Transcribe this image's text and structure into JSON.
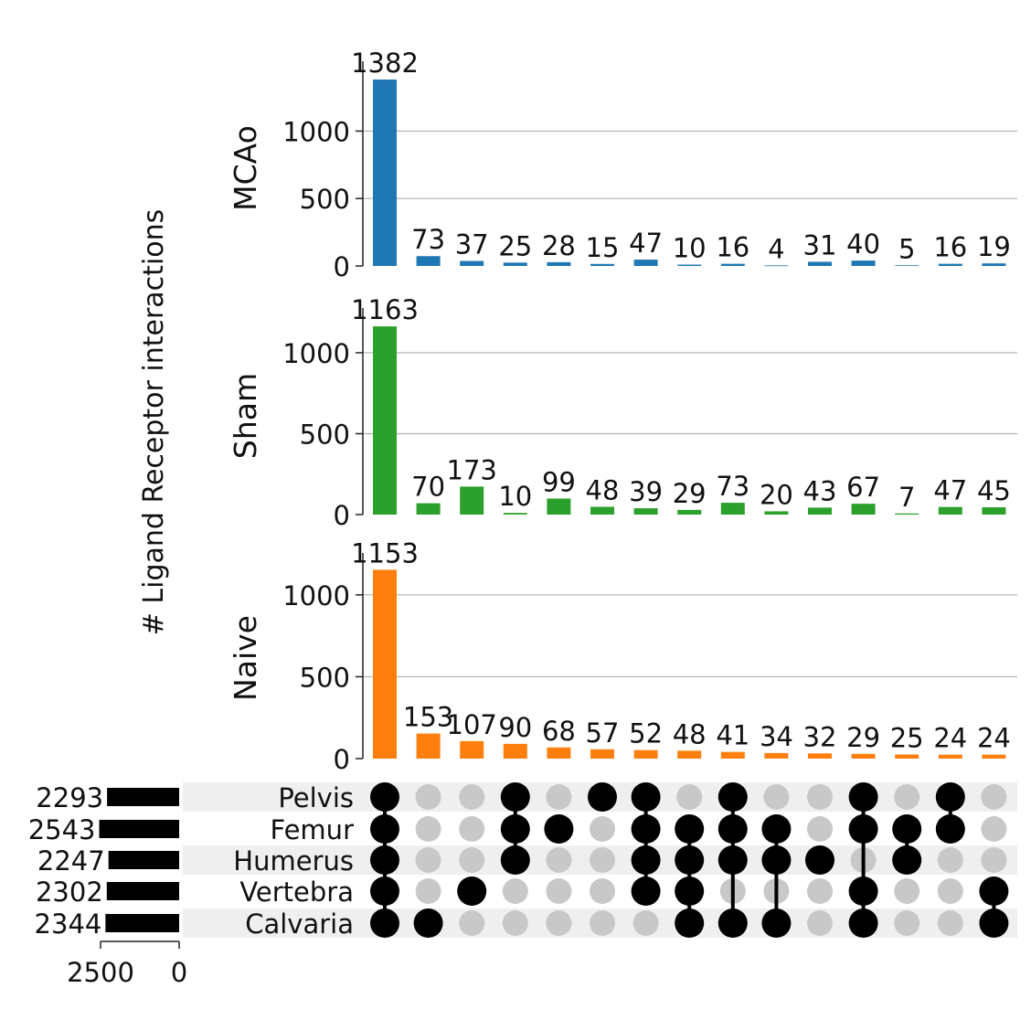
{
  "chart_data": {
    "type": "upset",
    "ylabel": "# Ligand Receptor interactions",
    "sets": [
      "Pelvis",
      "Femur",
      "Humerus",
      "Vertebra",
      "Calvaria"
    ],
    "set_sizes": [
      2293,
      2543,
      2247,
      2302,
      2344
    ],
    "set_size_axis": {
      "ticks": [
        2500,
        0
      ],
      "tick_labels": [
        "2500",
        "0"
      ]
    },
    "intersections": [
      [
        "Pelvis",
        "Femur",
        "Humerus",
        "Vertebra",
        "Calvaria"
      ],
      [
        "Calvaria"
      ],
      [
        "Vertebra"
      ],
      [
        "Pelvis",
        "Femur",
        "Humerus"
      ],
      [
        "Femur"
      ],
      [
        "Pelvis"
      ],
      [
        "Pelvis",
        "Femur",
        "Humerus",
        "Vertebra"
      ],
      [
        "Femur",
        "Humerus",
        "Vertebra",
        "Calvaria"
      ],
      [
        "Pelvis",
        "Femur",
        "Humerus",
        "Calvaria"
      ],
      [
        "Femur",
        "Humerus",
        "Calvaria"
      ],
      [
        "Humerus"
      ],
      [
        "Pelvis",
        "Femur",
        "Vertebra",
        "Calvaria"
      ],
      [
        "Femur",
        "Humerus"
      ],
      [
        "Pelvis",
        "Femur"
      ],
      [
        "Vertebra",
        "Calvaria"
      ]
    ],
    "panels": [
      {
        "name": "MCAo",
        "color": "#1f77b4",
        "ylim": [
          0,
          1450
        ],
        "yticks": [
          0,
          500,
          1000
        ],
        "grid": true,
        "values": [
          1382,
          73,
          37,
          25,
          28,
          15,
          47,
          10,
          16,
          4,
          31,
          40,
          5,
          16,
          19
        ]
      },
      {
        "name": "Sham",
        "color": "#2ca02c",
        "ylim": [
          0,
          1220
        ],
        "yticks": [
          0,
          500,
          1000
        ],
        "grid": true,
        "values": [
          1163,
          70,
          173,
          10,
          99,
          48,
          39,
          29,
          73,
          20,
          43,
          67,
          7,
          47,
          45
        ]
      },
      {
        "name": "Naive",
        "color": "#ff7f0e",
        "ylim": [
          0,
          1200
        ],
        "yticks": [
          0,
          500,
          1000
        ],
        "grid": true,
        "values": [
          1153,
          153,
          107,
          90,
          68,
          57,
          52,
          48,
          41,
          34,
          32,
          29,
          25,
          24,
          24
        ]
      }
    ],
    "matrix_colors": {
      "active": "#000000",
      "inactive": "#c8c8c8",
      "stripe": "#efefef"
    }
  }
}
